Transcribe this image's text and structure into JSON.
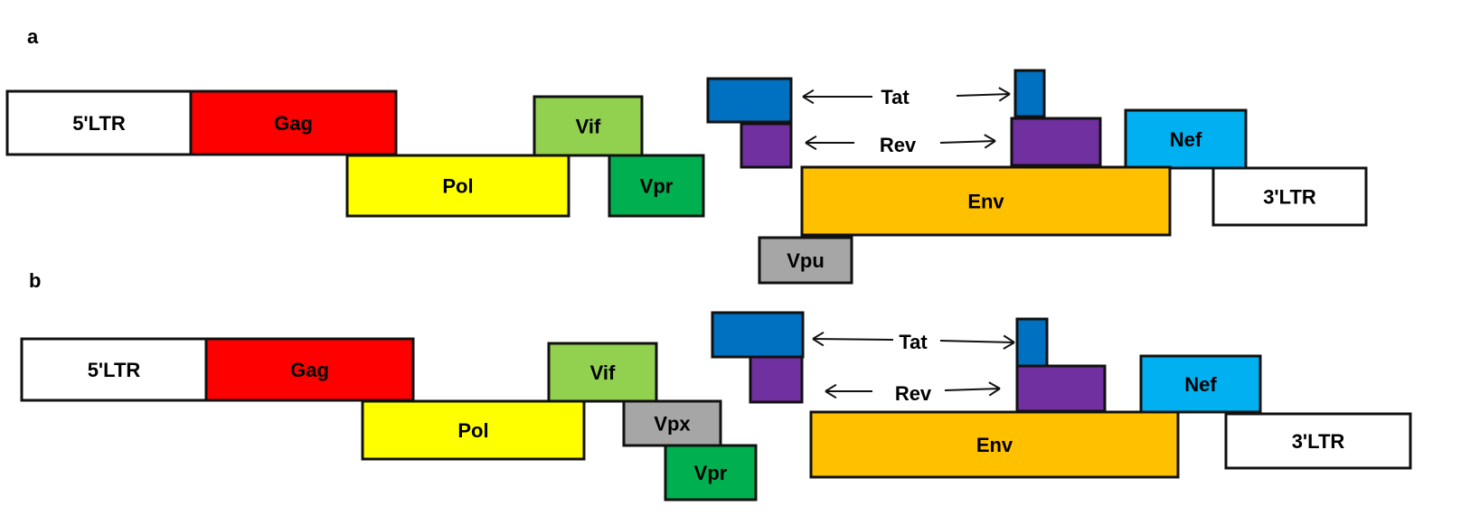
{
  "panels": [
    {
      "label": "a",
      "genes": [
        {
          "id": "ltr5",
          "label": "5'LTR",
          "color": "#ffffff"
        },
        {
          "id": "gag",
          "label": "Gag",
          "color": "#ff0000"
        },
        {
          "id": "vif",
          "label": "Vif",
          "color": "#92d050"
        },
        {
          "id": "pol",
          "label": "Pol",
          "color": "#ffff00"
        },
        {
          "id": "vpr",
          "label": "Vpr",
          "color": "#00b050"
        },
        {
          "id": "tat1",
          "label": "",
          "color": "#0070c0"
        },
        {
          "id": "rev1",
          "label": "",
          "color": "#7030a0"
        },
        {
          "id": "tat2",
          "label": "",
          "color": "#0070c0"
        },
        {
          "id": "rev2",
          "label": "",
          "color": "#7030a0"
        },
        {
          "id": "nef",
          "label": "Nef",
          "color": "#00b0f0"
        },
        {
          "id": "env",
          "label": "Env",
          "color": "#ffc000"
        },
        {
          "id": "ltr3",
          "label": "3'LTR",
          "color": "#ffffff"
        },
        {
          "id": "vpu",
          "label": "Vpu",
          "color": "#a6a6a6"
        }
      ],
      "tat_label": "Tat",
      "rev_label": "Rev"
    },
    {
      "label": "b",
      "genes": [
        {
          "id": "ltr5",
          "label": "5'LTR",
          "color": "#ffffff"
        },
        {
          "id": "gag",
          "label": "Gag",
          "color": "#ff0000"
        },
        {
          "id": "vif",
          "label": "Vif",
          "color": "#92d050"
        },
        {
          "id": "pol",
          "label": "Pol",
          "color": "#ffff00"
        },
        {
          "id": "vpx",
          "label": "Vpx",
          "color": "#a6a6a6"
        },
        {
          "id": "vpr",
          "label": "Vpr",
          "color": "#00b050"
        },
        {
          "id": "tat1",
          "label": "",
          "color": "#0070c0"
        },
        {
          "id": "rev1",
          "label": "",
          "color": "#7030a0"
        },
        {
          "id": "tat2",
          "label": "",
          "color": "#0070c0"
        },
        {
          "id": "rev2",
          "label": "",
          "color": "#7030a0"
        },
        {
          "id": "nef",
          "label": "Nef",
          "color": "#00b0f0"
        },
        {
          "id": "env",
          "label": "Env",
          "color": "#ffc000"
        },
        {
          "id": "ltr3",
          "label": "3'LTR",
          "color": "#ffffff"
        }
      ],
      "tat_label": "Tat",
      "rev_label": "Rev"
    }
  ]
}
